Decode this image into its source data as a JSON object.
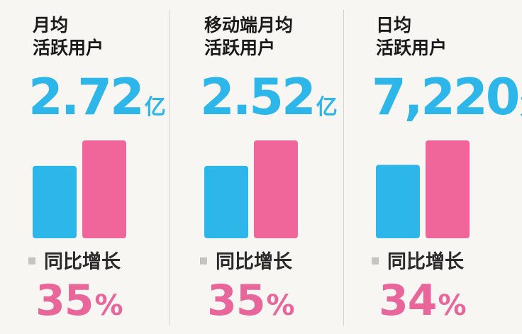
{
  "colors": {
    "accent_blue": "#2cb6ea",
    "accent_pink": "#f0659a",
    "heading": "#1a1a1a"
  },
  "chart_data": {
    "type": "bar",
    "panels": [
      {
        "title_lines": [
          "月均",
          "活跃用户"
        ],
        "value": "2.72",
        "unit": "亿",
        "growth_label": "同比增长",
        "growth_value": "35",
        "growth_unit": "%",
        "bars": [
          {
            "role": "prior",
            "color": "#2cb6ea",
            "height": 0.74
          },
          {
            "role": "current",
            "color": "#f0659a",
            "height": 1.0
          }
        ]
      },
      {
        "title_lines": [
          "移动端月均",
          "活跃用户"
        ],
        "value": "2.52",
        "unit": "亿",
        "growth_label": "同比增长",
        "growth_value": "35",
        "growth_unit": "%",
        "bars": [
          {
            "role": "prior",
            "color": "#2cb6ea",
            "height": 0.74
          },
          {
            "role": "current",
            "color": "#f0659a",
            "height": 1.0
          }
        ]
      },
      {
        "title_lines": [
          "日均",
          "活跃用户"
        ],
        "value": "7,220",
        "unit": "万",
        "growth_label": "同比增长",
        "growth_value": "34",
        "growth_unit": "%",
        "bars": [
          {
            "role": "prior",
            "color": "#2cb6ea",
            "height": 0.75
          },
          {
            "role": "current",
            "color": "#f0659a",
            "height": 1.0
          }
        ]
      }
    ]
  }
}
